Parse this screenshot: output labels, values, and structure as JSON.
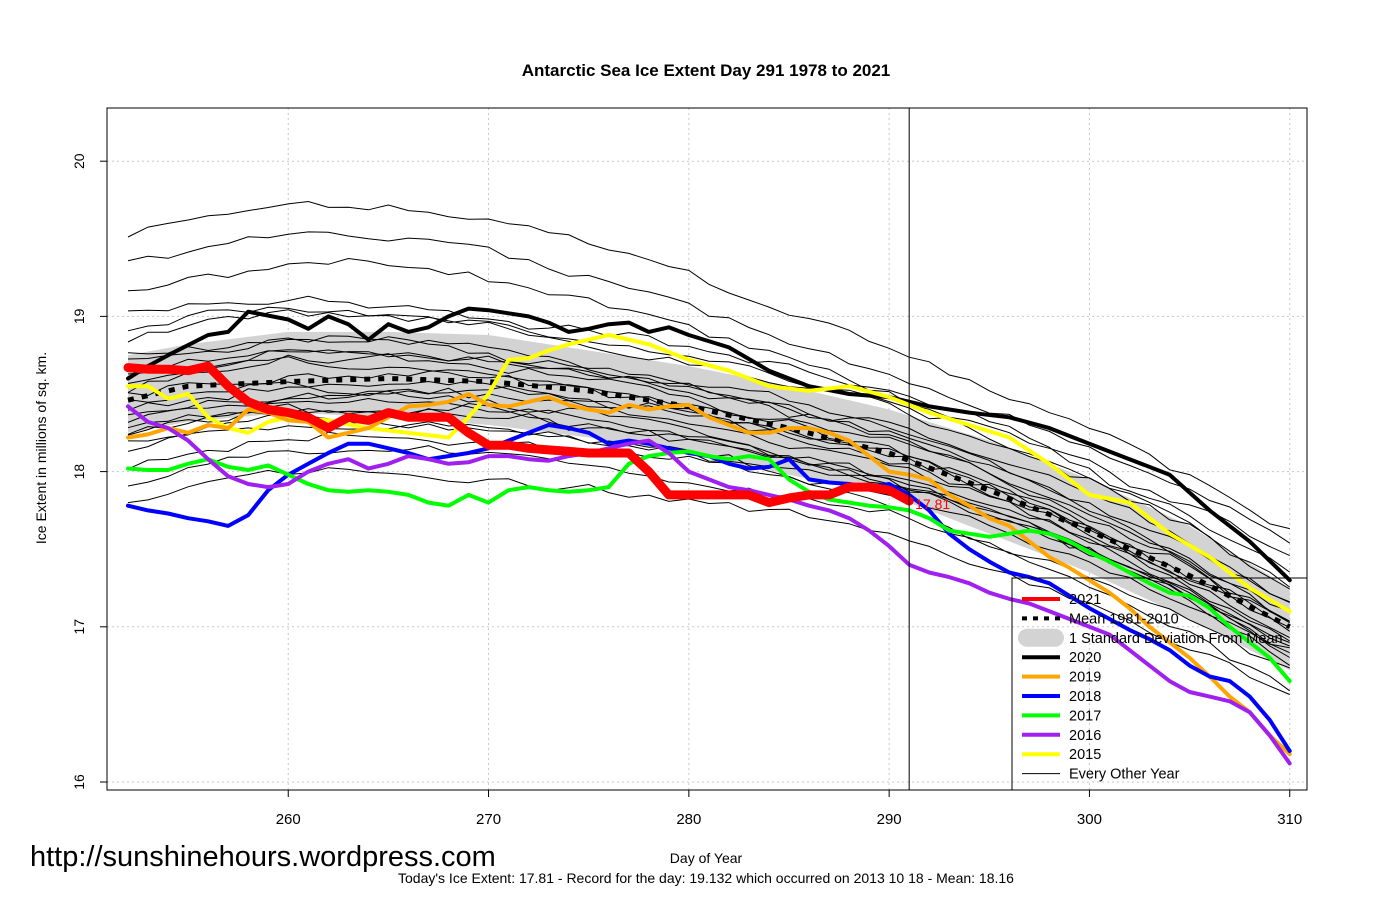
{
  "url_text": "http://sunshinehours.wordpress.com",
  "footer": "Today's Ice Extent: 17.81  - Record for the day: 19.132 which occurred on 2013 10 18  - Mean: 18.16",
  "chart_data": {
    "type": "line",
    "title": "Antarctic Sea Ice Extent Day 291 1978 to 2021",
    "xlabel": "Day of Year",
    "ylabel": "Ice Extent in millions of sq. km.",
    "xlim": [
      252,
      310
    ],
    "ylim": [
      15.98,
      20.35
    ],
    "xticks": [
      260,
      270,
      280,
      290,
      300,
      310
    ],
    "yticks": [
      16,
      17,
      18,
      19,
      20
    ],
    "grid": true,
    "current_day": 291,
    "current_label": "17.81",
    "legend_position": "bottom-right",
    "legend": [
      {
        "label": "2021",
        "color": "#ff0000",
        "style": "thick"
      },
      {
        "label": "Mean 1981-2010",
        "color": "#000000",
        "style": "dotted"
      },
      {
        "label": "1 Standard Deviation From Mean",
        "color": "#d3d3d3",
        "style": "band"
      },
      {
        "label": "2020",
        "color": "#000000",
        "style": "thick"
      },
      {
        "label": "2019",
        "color": "#ffa500",
        "style": "thick"
      },
      {
        "label": "2018",
        "color": "#0000ff",
        "style": "thick"
      },
      {
        "label": "2017",
        "color": "#00ff00",
        "style": "thick"
      },
      {
        "label": "2016",
        "color": "#a020f0",
        "style": "thick"
      },
      {
        "label": "2015",
        "color": "#ffff00",
        "style": "thick"
      },
      {
        "label": "Every Other Year",
        "color": "#000000",
        "style": "thin"
      }
    ],
    "band": {
      "x": [
        252,
        255,
        260,
        265,
        270,
        275,
        280,
        285,
        290,
        295,
        300,
        305,
        310
      ],
      "upper": [
        18.75,
        18.82,
        18.9,
        18.9,
        18.88,
        18.78,
        18.68,
        18.55,
        18.4,
        18.2,
        17.95,
        17.65,
        17.25
      ],
      "lower": [
        18.25,
        18.32,
        18.38,
        18.35,
        18.3,
        18.22,
        18.12,
        17.98,
        17.85,
        17.6,
        17.35,
        17.05,
        16.72
      ]
    },
    "series": [
      {
        "name": "Mean 1981-2010",
        "color": "#000000",
        "kind": "mean",
        "x": [
          252,
          255,
          260,
          265,
          270,
          275,
          280,
          285,
          290,
          295,
          300,
          305,
          310
        ],
        "y": [
          18.46,
          18.55,
          18.58,
          18.6,
          18.58,
          18.52,
          18.42,
          18.28,
          18.12,
          17.88,
          17.62,
          17.33,
          17.0
        ]
      },
      {
        "name": "2020",
        "color": "#000000",
        "kind": "thick",
        "x": [
          252,
          253,
          254,
          256,
          257,
          258,
          260,
          261,
          262,
          263,
          264,
          265,
          266,
          267,
          268,
          269,
          270,
          271,
          272,
          273,
          274,
          275,
          276,
          277,
          278,
          279,
          280,
          282,
          284,
          286,
          288,
          290,
          292,
          294,
          296,
          298,
          300,
          302,
          304,
          306,
          308,
          310
        ],
        "y": [
          18.6,
          18.68,
          18.75,
          18.88,
          18.9,
          19.03,
          18.98,
          18.92,
          19.0,
          18.95,
          18.85,
          18.95,
          18.9,
          18.93,
          19.0,
          19.05,
          19.04,
          19.02,
          19.0,
          18.96,
          18.9,
          18.92,
          18.95,
          18.96,
          18.9,
          18.93,
          18.88,
          18.8,
          18.65,
          18.55,
          18.5,
          18.48,
          18.42,
          18.38,
          18.35,
          18.28,
          18.18,
          18.08,
          17.98,
          17.75,
          17.55,
          17.3
        ]
      },
      {
        "name": "2015",
        "color": "#ffff00",
        "kind": "thick",
        "x": [
          252,
          253,
          254,
          255,
          256,
          257,
          258,
          259,
          260,
          262,
          264,
          266,
          268,
          269,
          270,
          271,
          272,
          273,
          274,
          275,
          276,
          278,
          280,
          282,
          284,
          286,
          288,
          290,
          292,
          294,
          296,
          298,
          300,
          302,
          304,
          306,
          308,
          310
        ],
        "y": [
          18.55,
          18.55,
          18.47,
          18.5,
          18.35,
          18.28,
          18.25,
          18.32,
          18.35,
          18.33,
          18.28,
          18.25,
          18.22,
          18.35,
          18.5,
          18.72,
          18.73,
          18.78,
          18.82,
          18.85,
          18.88,
          18.82,
          18.72,
          18.65,
          18.55,
          18.52,
          18.55,
          18.48,
          18.38,
          18.3,
          18.22,
          18.05,
          17.85,
          17.8,
          17.6,
          17.45,
          17.25,
          17.1
        ]
      },
      {
        "name": "2019",
        "color": "#ffa500",
        "kind": "thick",
        "x": [
          252,
          253,
          254,
          255,
          256,
          257,
          258,
          259,
          260,
          261,
          262,
          263,
          264,
          265,
          266,
          267,
          268,
          269,
          270,
          271,
          272,
          273,
          274,
          275,
          276,
          277,
          278,
          279,
          280,
          281,
          282,
          283,
          284,
          285,
          286,
          287,
          288,
          289,
          290,
          291,
          292,
          293,
          294,
          295,
          296,
          297,
          298,
          299,
          300,
          301,
          302,
          303,
          304,
          305,
          306,
          307,
          308,
          309,
          310
        ],
        "y": [
          18.22,
          18.24,
          18.28,
          18.25,
          18.3,
          18.28,
          18.4,
          18.38,
          18.33,
          18.32,
          18.22,
          18.25,
          18.28,
          18.35,
          18.42,
          18.43,
          18.45,
          18.5,
          18.43,
          18.42,
          18.45,
          18.48,
          18.43,
          18.4,
          18.38,
          18.43,
          18.4,
          18.42,
          18.43,
          18.35,
          18.3,
          18.25,
          18.25,
          18.28,
          18.28,
          18.25,
          18.2,
          18.1,
          18.0,
          17.98,
          17.95,
          17.85,
          17.78,
          17.7,
          17.65,
          17.55,
          17.45,
          17.38,
          17.3,
          17.22,
          17.12,
          17.0,
          16.9,
          16.8,
          16.68,
          16.55,
          16.45,
          16.3,
          16.18
        ]
      },
      {
        "name": "2018",
        "color": "#0000ff",
        "kind": "thick",
        "x": [
          252,
          253,
          254,
          255,
          256,
          257,
          258,
          259,
          260,
          261,
          262,
          263,
          264,
          265,
          266,
          267,
          268,
          269,
          270,
          271,
          272,
          273,
          274,
          275,
          276,
          277,
          278,
          279,
          280,
          281,
          282,
          283,
          284,
          285,
          286,
          287,
          288,
          289,
          290,
          291,
          292,
          293,
          294,
          295,
          296,
          297,
          298,
          299,
          300,
          301,
          302,
          303,
          304,
          305,
          306,
          307,
          308,
          309,
          310
        ],
        "y": [
          17.78,
          17.75,
          17.73,
          17.7,
          17.68,
          17.65,
          17.72,
          17.88,
          17.98,
          18.05,
          18.12,
          18.18,
          18.18,
          18.15,
          18.12,
          18.08,
          18.1,
          18.12,
          18.15,
          18.2,
          18.25,
          18.3,
          18.28,
          18.25,
          18.18,
          18.2,
          18.18,
          18.15,
          18.12,
          18.1,
          18.05,
          18.02,
          18.03,
          18.08,
          17.95,
          17.93,
          17.92,
          17.9,
          17.92,
          17.85,
          17.75,
          17.6,
          17.5,
          17.42,
          17.35,
          17.32,
          17.28,
          17.2,
          17.12,
          17.05,
          16.98,
          16.92,
          16.85,
          16.75,
          16.68,
          16.65,
          16.55,
          16.4,
          16.2
        ]
      },
      {
        "name": "2017",
        "color": "#00ff00",
        "kind": "thick",
        "x": [
          252,
          253,
          254,
          255,
          256,
          257,
          258,
          259,
          260,
          261,
          262,
          263,
          264,
          265,
          266,
          267,
          268,
          269,
          270,
          271,
          272,
          273,
          274,
          275,
          276,
          277,
          278,
          279,
          280,
          281,
          282,
          283,
          284,
          285,
          286,
          287,
          288,
          289,
          290,
          291,
          292,
          293,
          294,
          295,
          296,
          297,
          298,
          299,
          300,
          301,
          302,
          303,
          304,
          305,
          306,
          307,
          308,
          309,
          310
        ],
        "y": [
          18.02,
          18.01,
          18.01,
          18.05,
          18.08,
          18.03,
          18.01,
          18.04,
          17.98,
          17.92,
          17.88,
          17.87,
          17.88,
          17.87,
          17.85,
          17.8,
          17.78,
          17.85,
          17.8,
          17.88,
          17.9,
          17.88,
          17.87,
          17.88,
          17.9,
          18.05,
          18.1,
          18.12,
          18.13,
          18.1,
          18.08,
          18.1,
          18.08,
          17.95,
          17.87,
          17.82,
          17.8,
          17.78,
          17.77,
          17.75,
          17.7,
          17.62,
          17.6,
          17.58,
          17.6,
          17.62,
          17.6,
          17.55,
          17.48,
          17.42,
          17.35,
          17.28,
          17.22,
          17.2,
          17.12,
          17.0,
          16.9,
          16.8,
          16.65
        ]
      },
      {
        "name": "2016",
        "color": "#a020f0",
        "kind": "thick",
        "x": [
          252,
          253,
          254,
          255,
          256,
          257,
          258,
          259,
          260,
          261,
          262,
          263,
          264,
          265,
          266,
          267,
          268,
          269,
          270,
          271,
          272,
          273,
          274,
          275,
          276,
          277,
          278,
          279,
          280,
          281,
          282,
          283,
          284,
          285,
          286,
          287,
          288,
          289,
          290,
          291,
          292,
          293,
          294,
          295,
          296,
          297,
          298,
          299,
          300,
          301,
          302,
          303,
          304,
          305,
          306,
          307,
          308,
          309,
          310
        ],
        "y": [
          18.42,
          18.32,
          18.28,
          18.2,
          18.08,
          17.97,
          17.92,
          17.9,
          17.92,
          18.0,
          18.05,
          18.08,
          18.02,
          18.05,
          18.1,
          18.08,
          18.05,
          18.06,
          18.1,
          18.1,
          18.08,
          18.07,
          18.1,
          18.12,
          18.15,
          18.18,
          18.2,
          18.12,
          18.0,
          17.95,
          17.9,
          17.88,
          17.85,
          17.82,
          17.78,
          17.75,
          17.7,
          17.62,
          17.52,
          17.4,
          17.35,
          17.32,
          17.28,
          17.22,
          17.18,
          17.15,
          17.1,
          17.05,
          17.0,
          16.95,
          16.85,
          16.75,
          16.65,
          16.58,
          16.55,
          16.52,
          16.45,
          16.3,
          16.12
        ]
      },
      {
        "name": "2021",
        "color": "#ff0000",
        "kind": "thick",
        "x": [
          252,
          253,
          254,
          255,
          256,
          257,
          258,
          259,
          260,
          261,
          262,
          263,
          264,
          265,
          266,
          267,
          268,
          269,
          270,
          271,
          272,
          273,
          274,
          275,
          276,
          277,
          278,
          279,
          280,
          281,
          282,
          283,
          284,
          285,
          286,
          287,
          288,
          289,
          290,
          291
        ],
        "y": [
          18.67,
          18.66,
          18.66,
          18.65,
          18.68,
          18.55,
          18.45,
          18.4,
          18.38,
          18.35,
          18.28,
          18.35,
          18.33,
          18.38,
          18.35,
          18.35,
          18.35,
          18.25,
          18.17,
          18.17,
          18.15,
          18.14,
          18.13,
          18.12,
          18.12,
          18.12,
          18.0,
          17.85,
          17.85,
          17.85,
          17.85,
          17.85,
          17.8,
          17.83,
          17.85,
          17.85,
          17.9,
          17.9,
          17.88,
          17.81
        ]
      }
    ]
  }
}
